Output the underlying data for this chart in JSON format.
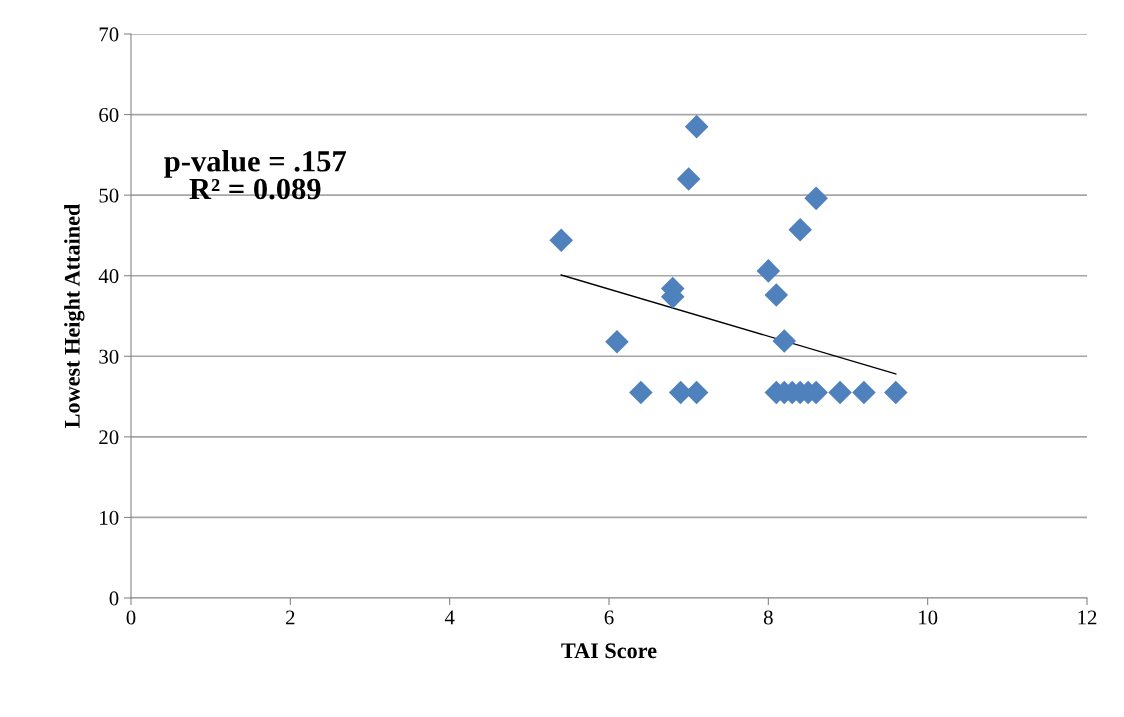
{
  "chart_data": {
    "type": "scatter",
    "xlabel": "TAI Score",
    "ylabel": "Lowest Height Attained",
    "annotations": [
      "p-value = .157",
      "R² = 0.089"
    ],
    "series": [
      {
        "color": "#4f81bd",
        "marker": "diamond",
        "x": [
          5.4,
          6.1,
          6.4,
          6.8,
          6.8,
          6.9,
          7.0,
          7.1,
          7.1,
          8.0,
          8.1,
          8.1,
          8.2,
          8.2,
          8.3,
          8.4,
          8.4,
          8.5,
          8.6,
          8.6,
          8.9,
          9.2,
          9.6
        ],
        "values": [
          44.4,
          31.8,
          25.5,
          38.4,
          37.4,
          25.5,
          52.0,
          58.5,
          25.5,
          40.6,
          37.6,
          25.5,
          31.9,
          25.5,
          25.5,
          25.5,
          45.7,
          25.5,
          25.5,
          49.6,
          25.5,
          25.5,
          25.5
        ]
      },
      {
        "type": "line",
        "color": "#000000",
        "x": [
          5.4,
          9.6
        ],
        "values": [
          40.1,
          27.8
        ]
      }
    ],
    "xlim": [
      0,
      12
    ],
    "xticks": [
      0,
      2,
      4,
      6,
      8,
      10,
      12
    ],
    "ylim": [
      0,
      70
    ],
    "yticks": [
      0,
      10,
      20,
      30,
      40,
      50,
      60,
      70
    ],
    "grid": "y",
    "legend": false
  }
}
